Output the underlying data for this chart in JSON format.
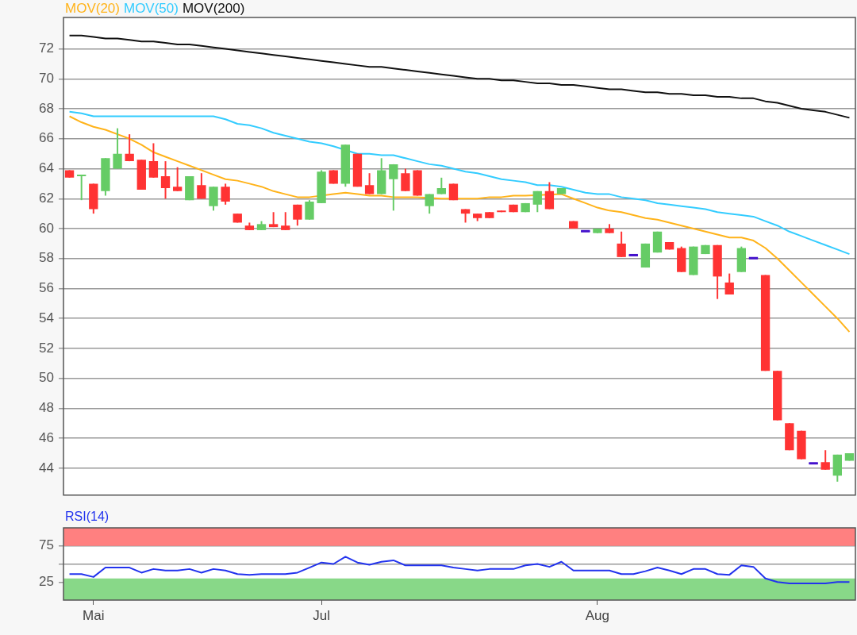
{
  "chart_data": [
    {
      "type": "candlestick",
      "legend": "top left",
      "grid": "y",
      "tick_labels": "y",
      "marker": "none",
      "line_style": "solid",
      "categories": [
        null,
        null,
        null,
        null,
        null,
        null,
        null,
        null,
        null,
        null,
        null,
        null,
        null,
        null,
        null,
        null,
        null,
        null,
        null,
        null,
        null,
        null,
        null,
        null,
        null,
        null,
        null,
        null,
        null,
        null,
        null,
        null,
        null,
        null,
        null,
        null,
        null,
        null,
        null,
        null,
        null,
        null,
        null,
        null,
        null,
        null,
        null,
        null,
        null,
        null,
        null,
        null,
        null,
        null,
        null,
        null,
        null,
        null,
        null,
        null,
        null,
        null,
        null,
        null,
        null,
        null
      ],
      "ylim": [
        42.2,
        74.1
      ],
      "yticks": [
        44,
        46,
        48,
        50,
        52,
        54,
        56,
        58,
        60,
        62,
        64,
        66,
        68,
        70,
        72
      ],
      "ohlc": [
        [
          63.9,
          63.9,
          63.4,
          63.4
        ],
        [
          63.5,
          63.6,
          61.9,
          63.6
        ],
        [
          63.0,
          63.0,
          61.0,
          61.3
        ],
        [
          62.5,
          64.7,
          62.2,
          64.7
        ],
        [
          64.0,
          66.7,
          64.0,
          65.0
        ],
        [
          65.0,
          66.3,
          64.5,
          64.5
        ],
        [
          64.6,
          64.6,
          62.6,
          62.6
        ],
        [
          64.5,
          65.7,
          63.4,
          63.4
        ],
        [
          63.5,
          64.5,
          62.0,
          62.7
        ],
        [
          62.8,
          64.1,
          62.5,
          62.5
        ],
        [
          61.9,
          63.5,
          61.9,
          63.5
        ],
        [
          62.9,
          63.7,
          62.0,
          62.0
        ],
        [
          61.5,
          62.8,
          61.2,
          62.8
        ],
        [
          62.8,
          63.0,
          61.6,
          61.8
        ],
        [
          61.0,
          61.0,
          60.4,
          60.4
        ],
        [
          60.2,
          60.4,
          59.9,
          59.9
        ],
        [
          59.9,
          60.5,
          59.9,
          60.3
        ],
        [
          60.3,
          61.1,
          60.1,
          60.1
        ],
        [
          60.2,
          61.1,
          59.9,
          59.9
        ],
        [
          61.6,
          61.6,
          60.2,
          60.6
        ],
        [
          60.6,
          61.9,
          60.6,
          61.8
        ],
        [
          61.7,
          63.9,
          61.7,
          63.8
        ],
        [
          63.9,
          63.9,
          63.0,
          63.0
        ],
        [
          63.0,
          65.6,
          62.8,
          65.6
        ],
        [
          65.0,
          65.0,
          62.8,
          62.8
        ],
        [
          62.9,
          63.7,
          62.3,
          62.3
        ],
        [
          62.3,
          64.7,
          62.3,
          63.9
        ],
        [
          63.3,
          64.3,
          61.2,
          64.3
        ],
        [
          63.7,
          64.0,
          62.5,
          62.5
        ],
        [
          63.9,
          63.9,
          62.2,
          62.2
        ],
        [
          61.5,
          62.3,
          61.0,
          62.3
        ],
        [
          62.3,
          63.4,
          62.3,
          62.7
        ],
        [
          63.0,
          63.0,
          61.9,
          61.9
        ],
        [
          61.3,
          61.3,
          60.4,
          61.0
        ],
        [
          61.0,
          61.0,
          60.5,
          60.7
        ],
        [
          61.1,
          61.1,
          60.7,
          60.7
        ],
        [
          61.2,
          61.2,
          61.1,
          61.1
        ],
        [
          61.6,
          61.6,
          61.1,
          61.1
        ],
        [
          61.1,
          61.7,
          61.1,
          61.7
        ],
        [
          61.6,
          62.5,
          61.1,
          62.5
        ],
        [
          62.5,
          63.1,
          61.3,
          61.3
        ],
        [
          62.3,
          62.7,
          62.3,
          62.7
        ],
        [
          60.5,
          60.5,
          60.0,
          60.0
        ],
        [
          59.8,
          59.8,
          59.8,
          59.8
        ],
        [
          59.7,
          60.0,
          59.7,
          60.0
        ],
        [
          60.0,
          60.3,
          59.7,
          59.7
        ],
        [
          59.0,
          59.8,
          58.1,
          58.1
        ],
        [
          58.2,
          58.2,
          58.2,
          58.2
        ],
        [
          57.4,
          59.0,
          57.4,
          59.0
        ],
        [
          58.4,
          59.8,
          58.4,
          59.8
        ],
        [
          59.1,
          59.1,
          58.6,
          58.6
        ],
        [
          58.7,
          58.8,
          57.1,
          57.1
        ],
        [
          56.9,
          58.8,
          56.9,
          58.8
        ],
        [
          58.3,
          58.9,
          58.3,
          58.9
        ],
        [
          58.9,
          58.9,
          55.3,
          56.8
        ],
        [
          56.4,
          57.0,
          55.6,
          55.6
        ],
        [
          57.1,
          58.8,
          57.1,
          58.7
        ],
        [
          58.0,
          58.0,
          58.0,
          58.0
        ],
        [
          56.9,
          56.9,
          50.5,
          50.5
        ],
        [
          50.5,
          50.5,
          47.2,
          47.2
        ],
        [
          47.0,
          47.0,
          45.2,
          45.2
        ],
        [
          46.5,
          46.5,
          44.6,
          44.6
        ],
        [
          44.3,
          44.3,
          44.3,
          44.3
        ],
        [
          44.4,
          45.2,
          43.9,
          43.9
        ],
        [
          43.5,
          44.9,
          43.1,
          44.9
        ],
        [
          44.5,
          45.0,
          44.5,
          45.0
        ]
      ],
      "colors": [
        "#ff3333",
        "#66cc66",
        "#ff3333",
        "#66cc66",
        "#66cc66",
        "#ff3333",
        "#ff3333",
        "#ff3333",
        "#ff3333",
        "#ff3333",
        "#66cc66",
        "#ff3333",
        "#66cc66",
        "#ff3333",
        "#ff3333",
        "#ff3333",
        "#66cc66",
        "#ff3333",
        "#ff3333",
        "#ff3333",
        "#66cc66",
        "#66cc66",
        "#ff3333",
        "#66cc66",
        "#ff3333",
        "#ff3333",
        "#66cc66",
        "#66cc66",
        "#ff3333",
        "#ff3333",
        "#66cc66",
        "#66cc66",
        "#ff3333",
        "#ff3333",
        "#ff3333",
        "#ff3333",
        "#ff3333",
        "#ff3333",
        "#66cc66",
        "#66cc66",
        "#ff3333",
        "#66cc66",
        "#ff3333",
        "#4411cc",
        "#66cc66",
        "#ff3333",
        "#ff3333",
        "#4411cc",
        "#66cc66",
        "#66cc66",
        "#ff3333",
        "#ff3333",
        "#66cc66",
        "#66cc66",
        "#ff3333",
        "#ff3333",
        "#66cc66",
        "#4411cc",
        "#ff3333",
        "#ff3333",
        "#ff3333",
        "#ff3333",
        "#4411cc",
        "#ff3333",
        "#66cc66",
        "#66cc66"
      ],
      "series": [
        {
          "type": "line",
          "name": "MOV(20)",
          "color": "#ffb31a",
          "values": [
            67.5,
            67.1,
            66.8,
            66.6,
            66.3,
            66.0,
            65.6,
            65.1,
            64.8,
            64.5,
            64.2,
            63.9,
            63.6,
            63.3,
            63.2,
            63.0,
            62.8,
            62.5,
            62.3,
            62.1,
            62.1,
            null,
            62.3,
            62.4,
            62.3,
            62.2,
            62.2,
            62.1,
            62.1,
            62.1,
            null,
            62.0,
            null,
            62.0,
            62.0,
            62.1,
            62.1,
            62.2,
            62.2,
            null,
            null,
            62.3,
            62.0,
            61.7,
            61.4,
            61.2,
            61.1,
            60.9,
            60.7,
            60.6,
            60.4,
            60.2,
            60.0,
            59.8,
            59.6,
            59.4,
            59.4,
            59.2,
            58.7,
            58.0,
            57.2,
            56.4,
            55.6,
            54.8,
            54.0,
            53.1
          ]
        },
        {
          "type": "line",
          "name": "MOV(50)",
          "color": "#33ccff",
          "values": [
            67.8,
            67.7,
            67.5,
            67.5,
            67.5,
            67.5,
            67.5,
            67.5,
            67.5,
            67.5,
            67.5,
            67.5,
            67.5,
            67.3,
            67.0,
            66.9,
            66.7,
            66.4,
            66.2,
            66.0,
            65.8,
            65.7,
            65.5,
            null,
            65.0,
            65.0,
            64.9,
            64.9,
            64.7,
            64.5,
            64.3,
            64.2,
            64.0,
            63.8,
            63.7,
            63.5,
            63.3,
            63.2,
            63.1,
            62.9,
            62.9,
            62.8,
            62.6,
            62.4,
            62.3,
            62.3,
            62.1,
            62.0,
            61.9,
            61.7,
            61.6,
            61.5,
            61.4,
            61.3,
            61.1,
            61.0,
            60.9,
            60.8,
            60.5,
            60.2,
            59.8,
            59.5,
            59.2,
            58.9,
            58.6,
            58.3
          ]
        },
        {
          "type": "line",
          "name": "MOV(200)",
          "color": "#111111",
          "values": [
            72.9,
            72.9,
            72.8,
            72.7,
            72.7,
            72.6,
            72.5,
            72.5,
            72.4,
            72.3,
            72.3,
            72.2,
            72.1,
            72.0,
            71.9,
            71.8,
            71.7,
            71.6,
            71.5,
            71.4,
            71.3,
            71.2,
            71.1,
            71.0,
            70.9,
            70.8,
            70.8,
            70.7,
            70.6,
            70.5,
            70.4,
            70.3,
            70.2,
            70.1,
            70.0,
            70.0,
            69.9,
            69.9,
            69.8,
            69.7,
            69.7,
            69.6,
            69.6,
            69.5,
            69.4,
            69.3,
            69.3,
            69.2,
            69.1,
            69.1,
            69.0,
            69.0,
            68.9,
            68.9,
            68.8,
            68.8,
            68.7,
            68.7,
            68.5,
            68.4,
            68.2,
            68.0,
            67.9,
            67.8,
            67.6,
            67.4
          ]
        }
      ]
    },
    {
      "type": "line",
      "title": "RSI(14)",
      "grid": "y",
      "marker": "none",
      "line_style": "solid",
      "categories": [
        null,
        null,
        "Mai",
        null,
        null,
        null,
        null,
        null,
        null,
        null,
        null,
        null,
        null,
        null,
        null,
        null,
        null,
        null,
        null,
        null,
        null,
        "Jul",
        null,
        null,
        null,
        null,
        null,
        null,
        null,
        null,
        null,
        null,
        null,
        null,
        null,
        null,
        null,
        null,
        null,
        null,
        null,
        null,
        null,
        null,
        "Aug",
        null,
        null,
        null,
        null,
        null,
        null,
        null,
        null,
        null,
        null,
        null,
        null,
        null,
        null,
        null,
        null,
        null,
        null,
        null,
        null,
        null
      ],
      "ylim": [
        0,
        100
      ],
      "yticks": [
        25,
        {
          "value": 50,
          "label": null
        },
        75
      ],
      "bands": [
        {
          "axis": "y",
          "from": 75,
          "to": 100,
          "color": "#ff8080"
        },
        {
          "axis": "y",
          "from": 0,
          "to": 30,
          "color": "#88d888"
        }
      ],
      "series": [
        {
          "color": "#2233ee",
          "values": [
            36,
            36,
            32,
            45,
            45,
            45,
            38,
            43,
            41,
            41,
            43,
            38,
            43,
            41,
            36,
            35,
            36,
            36,
            36,
            38,
            45,
            52,
            50,
            60,
            52,
            49,
            53,
            55,
            48,
            48,
            48,
            48,
            45,
            43,
            41,
            43,
            43,
            43,
            48,
            50,
            46,
            53,
            41,
            41,
            41,
            41,
            36,
            36,
            40,
            45,
            41,
            36,
            43,
            43,
            36,
            35,
            48,
            46,
            30,
            25,
            23,
            23,
            23,
            23,
            25,
            25
          ]
        }
      ]
    }
  ]
}
